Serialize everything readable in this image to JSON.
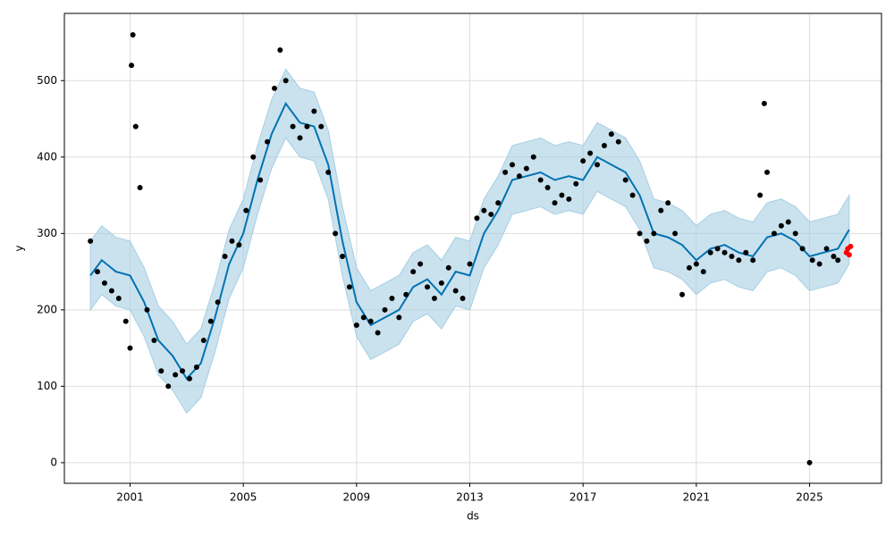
{
  "chart_data": {
    "type": "line",
    "xlabel": "ds",
    "ylabel": "y",
    "xlim": [
      1998.68,
      2027.54
    ],
    "ylim": [
      -27,
      588
    ],
    "xticks": [
      2001,
      2005,
      2009,
      2013,
      2017,
      2021,
      2025
    ],
    "yticks": [
      0,
      100,
      200,
      300,
      400,
      500
    ],
    "grid": true,
    "series": [
      {
        "mark": "band",
        "color": "#a6cee3",
        "x": [
          1999.6,
          2000,
          2000.5,
          2001,
          2001.5,
          2002,
          2002.5,
          2003,
          2003.5,
          2004,
          2004.5,
          2005,
          2005.5,
          2006,
          2006.5,
          2007,
          2007.5,
          2008,
          2008.5,
          2009,
          2009.5,
          2010,
          2010.5,
          2011,
          2011.5,
          2012,
          2012.5,
          2013,
          2013.5,
          2014,
          2014.5,
          2015,
          2015.5,
          2016,
          2016.5,
          2017,
          2017.5,
          2018,
          2018.5,
          2019,
          2019.5,
          2020,
          2020.5,
          2021,
          2021.5,
          2022,
          2022.5,
          2023,
          2023.5,
          2024,
          2024.5,
          2025,
          2025.5,
          2026,
          2026.4
        ],
        "lower": [
          200,
          220,
          205,
          200,
          165,
          115,
          95,
          65,
          85,
          145,
          215,
          255,
          325,
          385,
          425,
          400,
          395,
          345,
          245,
          165,
          135,
          145,
          155,
          185,
          195,
          175,
          205,
          200,
          255,
          285,
          325,
          330,
          335,
          325,
          330,
          325,
          355,
          345,
          335,
          305,
          255,
          250,
          240,
          220,
          235,
          240,
          230,
          225,
          250,
          255,
          245,
          225,
          230,
          235,
          260
        ],
        "upper": [
          290,
          310,
          295,
          290,
          255,
          205,
          185,
          155,
          175,
          235,
          305,
          345,
          415,
          475,
          515,
          490,
          485,
          435,
          335,
          255,
          225,
          235,
          245,
          275,
          285,
          265,
          295,
          290,
          345,
          375,
          415,
          420,
          425,
          415,
          420,
          415,
          445,
          435,
          425,
          395,
          345,
          340,
          330,
          310,
          325,
          330,
          320,
          315,
          340,
          345,
          335,
          315,
          320,
          325,
          350
        ]
      },
      {
        "mark": "line",
        "color": "#0072b2",
        "x": [
          1999.6,
          2000,
          2000.5,
          2001,
          2001.5,
          2002,
          2002.5,
          2003,
          2003.5,
          2004,
          2004.5,
          2005,
          2005.5,
          2006,
          2006.5,
          2007,
          2007.5,
          2008,
          2008.5,
          2009,
          2009.5,
          2010,
          2010.5,
          2011,
          2011.5,
          2012,
          2012.5,
          2013,
          2013.5,
          2014,
          2014.5,
          2015,
          2015.5,
          2016,
          2016.5,
          2017,
          2017.5,
          2018,
          2018.5,
          2019,
          2019.5,
          2020,
          2020.5,
          2021,
          2021.5,
          2022,
          2022.5,
          2023,
          2023.5,
          2024,
          2024.5,
          2025,
          2025.5,
          2026,
          2026.4
        ],
        "values": [
          245,
          265,
          250,
          245,
          210,
          160,
          140,
          110,
          130,
          190,
          260,
          300,
          370,
          430,
          470,
          445,
          440,
          390,
          290,
          210,
          180,
          190,
          200,
          230,
          240,
          220,
          250,
          245,
          300,
          330,
          370,
          375,
          380,
          370,
          375,
          370,
          400,
          390,
          380,
          350,
          300,
          295,
          285,
          265,
          280,
          285,
          275,
          270,
          295,
          300,
          290,
          270,
          275,
          280,
          305
        ]
      },
      {
        "mark": "scatter",
        "color": "#000000",
        "x": [
          1999.6,
          1999.85,
          2000.1,
          2000.35,
          2000.6,
          2000.85,
          2001.0,
          2001.05,
          2001.1,
          2001.2,
          2001.35,
          2001.6,
          2001.85,
          2002.1,
          2002.35,
          2002.6,
          2002.85,
          2003.1,
          2003.35,
          2003.6,
          2003.85,
          2004.1,
          2004.35,
          2004.6,
          2004.85,
          2005.1,
          2005.35,
          2005.6,
          2005.85,
          2006.1,
          2006.3,
          2006.5,
          2006.75,
          2007.0,
          2007.25,
          2007.5,
          2007.75,
          2008.0,
          2008.25,
          2008.5,
          2008.75,
          2009.0,
          2009.25,
          2009.5,
          2009.75,
          2010.0,
          2010.25,
          2010.5,
          2010.75,
          2011.0,
          2011.25,
          2011.5,
          2011.75,
          2012.0,
          2012.25,
          2012.5,
          2012.75,
          2013.0,
          2013.25,
          2013.5,
          2013.75,
          2014.0,
          2014.25,
          2014.5,
          2014.75,
          2015.0,
          2015.25,
          2015.5,
          2015.75,
          2016.0,
          2016.25,
          2016.5,
          2016.75,
          2017.0,
          2017.25,
          2017.5,
          2017.75,
          2018.0,
          2018.25,
          2018.5,
          2018.75,
          2019.0,
          2019.25,
          2019.5,
          2019.75,
          2020.0,
          2020.25,
          2020.5,
          2020.75,
          2021.0,
          2021.25,
          2021.5,
          2021.75,
          2022.0,
          2022.25,
          2022.5,
          2022.75,
          2023.0,
          2023.25,
          2023.4,
          2023.5,
          2023.75,
          2024.0,
          2024.25,
          2024.5,
          2024.75,
          2025.0,
          2025.1,
          2025.35,
          2025.6,
          2025.85,
          2026.0
        ],
        "values": [
          290,
          250,
          235,
          225,
          215,
          185,
          150,
          520,
          560,
          440,
          360,
          200,
          160,
          120,
          100,
          115,
          120,
          110,
          125,
          160,
          185,
          210,
          270,
          290,
          285,
          330,
          400,
          370,
          420,
          490,
          540,
          500,
          440,
          425,
          440,
          460,
          440,
          380,
          300,
          270,
          230,
          180,
          190,
          185,
          170,
          200,
          215,
          190,
          220,
          250,
          260,
          230,
          215,
          235,
          255,
          225,
          215,
          260,
          320,
          330,
          325,
          340,
          380,
          390,
          375,
          385,
          400,
          370,
          360,
          340,
          350,
          345,
          365,
          395,
          405,
          390,
          415,
          430,
          420,
          370,
          350,
          300,
          290,
          300,
          330,
          340,
          300,
          220,
          255,
          260,
          250,
          275,
          280,
          275,
          270,
          265,
          275,
          265,
          350,
          470,
          380,
          300,
          310,
          315,
          300,
          280,
          0,
          265,
          260,
          280,
          270,
          265
        ]
      },
      {
        "mark": "scatter",
        "color": "#ff0000",
        "x": [
          2026.3,
          2026.35,
          2026.4,
          2026.45
        ],
        "values": [
          275,
          280,
          272,
          283
        ]
      }
    ]
  }
}
